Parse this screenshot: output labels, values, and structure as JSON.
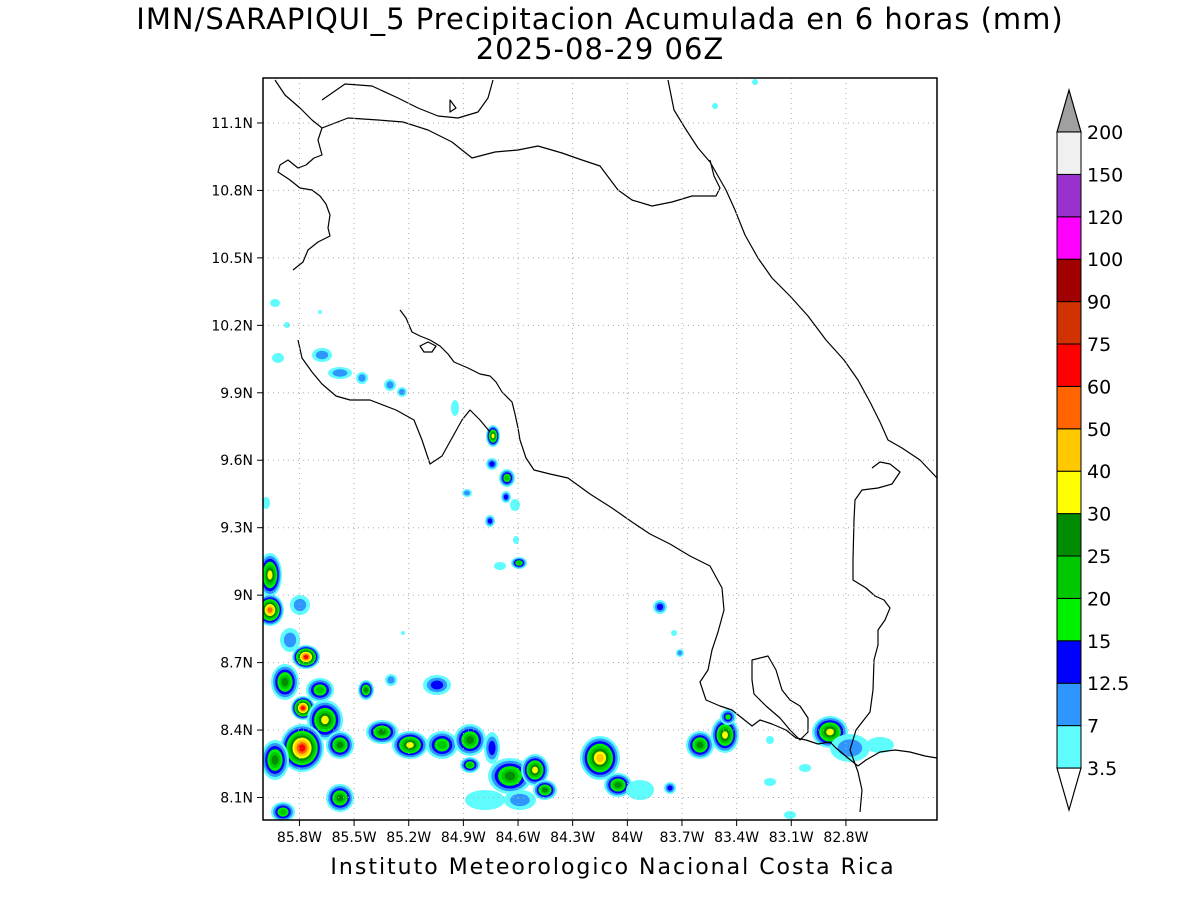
{
  "title": {
    "line1": "IMN/SARAPIQUI_5 Precipitacion Acumulada en 6 horas (mm)",
    "line2": "2025-08-29 06Z"
  },
  "footer": "Instituto Meteorologico Nacional Costa Rica",
  "axes": {
    "lat_labels": [
      "11.1N",
      "10.8N",
      "10.5N",
      "10.2N",
      "9.9N",
      "9.6N",
      "9.3N",
      "9N",
      "8.7N",
      "8.4N",
      "8.1N"
    ],
    "lon_labels": [
      "85.8W",
      "85.5W",
      "85.2W",
      "84.9W",
      "84.6W",
      "84.3W",
      "84W",
      "83.7W",
      "83.4W",
      "83.1W",
      "82.8W"
    ],
    "lat_range": [
      8.0,
      11.3
    ],
    "lon_range": [
      -86.0,
      -82.3
    ],
    "grid": true
  },
  "colorbar": {
    "levels": [
      "3.5",
      "7",
      "12.5",
      "15",
      "20",
      "25",
      "30",
      "40",
      "50",
      "60",
      "75",
      "90",
      "100",
      "120",
      "150",
      "200"
    ],
    "colors": [
      "#5ffcfd",
      "#3096ff",
      "#0000ff",
      "#00f000",
      "#00c800",
      "#008c00",
      "#ffff00",
      "#ffc800",
      "#ff6400",
      "#ff0000",
      "#d23200",
      "#a00000",
      "#ff00ff",
      "#9932cc",
      "#f0f0f0",
      "#a0a0a0"
    ]
  }
}
